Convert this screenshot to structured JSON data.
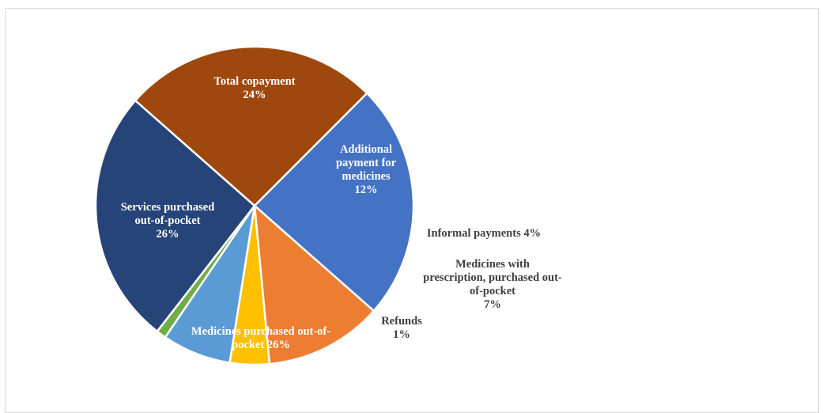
{
  "chart_data": {
    "type": "pie",
    "title": "",
    "slices": [
      {
        "label": "Total copayment",
        "value": 24,
        "value_label": "24%",
        "color": "#4472c4",
        "label_color": "#ffffff",
        "lines": [
          "Total copayment",
          "24%"
        ]
      },
      {
        "label": "Additional payment for medicines",
        "value": 12,
        "value_label": "12%",
        "color": "#ed7d31",
        "label_color": "#ffffff",
        "lines": [
          "Additional",
          "payment for",
          "medicines",
          "12%"
        ]
      },
      {
        "label": "Informal payments",
        "value": 4,
        "value_label": "4%",
        "color": "#ffc000",
        "label_color": "#404040",
        "lines": [
          "Informal payments 4%"
        ]
      },
      {
        "label": "Medicines with prescription, purchased out-of-pocket",
        "value": 7,
        "value_label": "7%",
        "color": "#5b9bd5",
        "label_color": "#404040",
        "lines": [
          "Medicines with",
          "prescription, purchased out-",
          "of-pocket",
          "7%"
        ]
      },
      {
        "label": "Refunds",
        "value": 1,
        "value_label": "1%",
        "color": "#70ad47",
        "label_color": "#404040",
        "lines": [
          "Refunds",
          "1%"
        ]
      },
      {
        "label": "Medicines purchased out-of-pocket",
        "value": 26,
        "value_label": "26%",
        "color": "#264478",
        "label_color": "#ffffff",
        "lines": [
          "Medicines purchased out-of-",
          "pocket 26%"
        ]
      },
      {
        "label": "Services purchased out-of-pocket",
        "value": 26,
        "value_label": "26%",
        "color": "#9e480e",
        "label_color": "#ffffff",
        "lines": [
          "Services purchased",
          "out-of-pocket",
          "26%"
        ]
      }
    ],
    "start_angle_deg": 45,
    "direction": "clockwise",
    "legend": "none"
  }
}
